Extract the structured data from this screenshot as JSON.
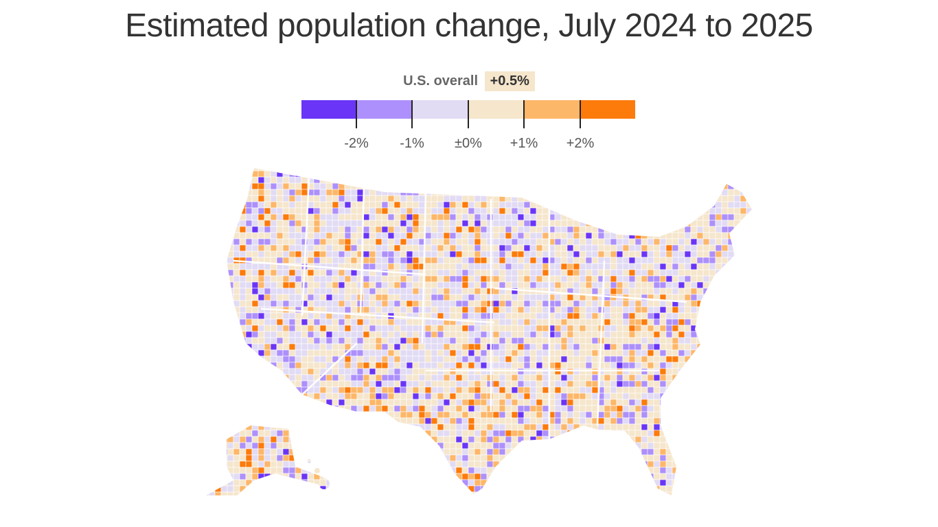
{
  "title": "Estimated population change, July 2024 to 2025",
  "overall": {
    "label": "U.S. overall",
    "value": "+0.5%"
  },
  "legend": {
    "colors": [
      "#6a35f6",
      "#ad90fb",
      "#e2dbf4",
      "#f5e6cc",
      "#fdb769",
      "#fc7b0b"
    ],
    "ticks": [
      "-2%",
      "-1%",
      "±0%",
      "+1%",
      "+2%"
    ]
  },
  "map": {
    "region": "United States counties",
    "no_data_color": "#cccccc"
  }
}
